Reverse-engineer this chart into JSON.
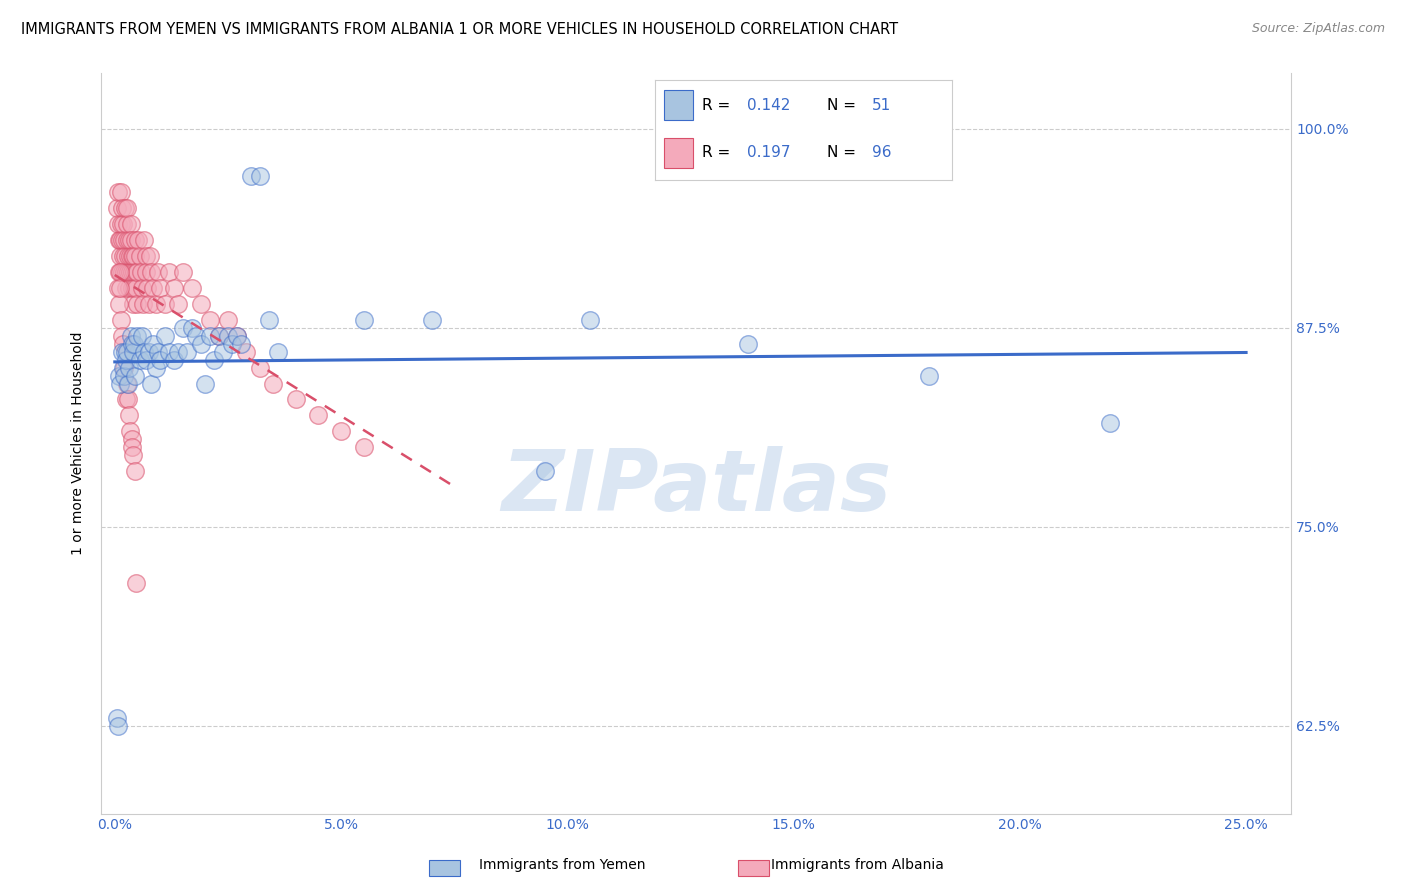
{
  "title": "IMMIGRANTS FROM YEMEN VS IMMIGRANTS FROM ALBANIA 1 OR MORE VEHICLES IN HOUSEHOLD CORRELATION CHART",
  "source": "Source: ZipAtlas.com",
  "xlabel_ticks": [
    "0.0%",
    "5.0%",
    "10.0%",
    "15.0%",
    "20.0%",
    "25.0%"
  ],
  "xlabel_vals": [
    0.0,
    5.0,
    10.0,
    15.0,
    20.0,
    25.0
  ],
  "ylabel_ticks": [
    "62.5%",
    "75.0%",
    "87.5%",
    "100.0%"
  ],
  "ylabel_vals": [
    62.5,
    75.0,
    87.5,
    100.0
  ],
  "ylabel_label": "1 or more Vehicles in Household",
  "xlim": [
    -0.3,
    26.0
  ],
  "ylim": [
    57.0,
    103.5
  ],
  "blue_color": "#A8C4E0",
  "pink_color": "#F4AABB",
  "blue_line_color": "#3B6BC9",
  "pink_line_color": "#D94F6A",
  "tick_color": "#3B6BC9",
  "watermark": "ZIPatlas",
  "yemen_x": [
    0.05,
    0.08,
    0.1,
    0.12,
    0.15,
    0.18,
    0.2,
    0.22,
    0.25,
    0.28,
    0.3,
    0.32,
    0.35,
    0.38,
    0.4,
    0.42,
    0.45,
    0.5,
    0.55,
    0.6,
    0.65,
    0.7,
    0.75,
    0.8,
    0.85,
    0.9,
    0.95,
    1.0,
    1.1,
    1.2,
    1.3,
    1.4,
    1.5,
    1.6,
    1.7,
    1.8,
    1.9,
    2.0,
    2.1,
    2.2,
    2.3,
    2.4,
    2.5,
    2.6,
    2.7,
    2.8,
    3.0,
    3.2,
    3.4,
    3.6,
    5.5,
    7.0,
    9.5,
    10.5,
    14.0,
    18.0,
    22.0
  ],
  "yemen_y": [
    63.0,
    62.5,
    84.5,
    84.0,
    86.0,
    85.0,
    84.5,
    86.0,
    85.5,
    86.0,
    84.0,
    85.0,
    87.0,
    86.5,
    86.0,
    86.5,
    84.5,
    87.0,
    85.5,
    87.0,
    86.0,
    85.5,
    86.0,
    84.0,
    86.5,
    85.0,
    86.0,
    85.5,
    87.0,
    86.0,
    85.5,
    86.0,
    87.5,
    86.0,
    87.5,
    87.0,
    86.5,
    84.0,
    87.0,
    85.5,
    87.0,
    86.0,
    87.0,
    86.5,
    87.0,
    86.5,
    97.0,
    97.0,
    88.0,
    86.0,
    88.0,
    88.0,
    78.5,
    88.0,
    86.5,
    84.5,
    81.5
  ],
  "albania_x": [
    0.05,
    0.07,
    0.08,
    0.09,
    0.1,
    0.11,
    0.12,
    0.13,
    0.14,
    0.15,
    0.16,
    0.17,
    0.18,
    0.19,
    0.2,
    0.21,
    0.22,
    0.23,
    0.24,
    0.25,
    0.26,
    0.27,
    0.28,
    0.29,
    0.3,
    0.31,
    0.32,
    0.33,
    0.34,
    0.35,
    0.36,
    0.37,
    0.38,
    0.39,
    0.4,
    0.41,
    0.42,
    0.43,
    0.44,
    0.45,
    0.46,
    0.47,
    0.48,
    0.5,
    0.52,
    0.55,
    0.58,
    0.6,
    0.62,
    0.65,
    0.68,
    0.7,
    0.72,
    0.75,
    0.78,
    0.8,
    0.85,
    0.9,
    0.95,
    1.0,
    1.1,
    1.2,
    1.3,
    1.4,
    1.5,
    1.7,
    1.9,
    2.1,
    2.3,
    2.5,
    2.7,
    2.9,
    3.2,
    3.5,
    4.0,
    4.5,
    5.0,
    5.5,
    0.08,
    0.09,
    0.11,
    0.12,
    0.14,
    0.16,
    0.19,
    0.21,
    0.24,
    0.27,
    0.29,
    0.31,
    0.34,
    0.37,
    0.39,
    0.41,
    0.44,
    0.47
  ],
  "albania_y": [
    95.0,
    94.0,
    96.0,
    93.0,
    91.0,
    92.0,
    93.0,
    96.0,
    94.0,
    95.0,
    93.0,
    91.0,
    92.0,
    94.0,
    93.0,
    91.0,
    95.0,
    92.0,
    90.0,
    91.0,
    93.0,
    94.0,
    95.0,
    92.0,
    91.0,
    90.0,
    93.0,
    92.0,
    91.0,
    94.0,
    93.0,
    92.0,
    91.0,
    90.0,
    89.0,
    92.0,
    91.0,
    90.0,
    93.0,
    92.0,
    91.0,
    90.0,
    89.0,
    91.0,
    93.0,
    92.0,
    91.0,
    90.0,
    89.0,
    93.0,
    92.0,
    91.0,
    90.0,
    89.0,
    92.0,
    91.0,
    90.0,
    89.0,
    91.0,
    90.0,
    89.0,
    91.0,
    90.0,
    89.0,
    91.0,
    90.0,
    89.0,
    88.0,
    87.0,
    88.0,
    87.0,
    86.0,
    85.0,
    84.0,
    83.0,
    82.0,
    81.0,
    80.0,
    90.0,
    89.0,
    91.0,
    90.0,
    88.0,
    87.0,
    86.5,
    85.0,
    83.0,
    84.0,
    83.0,
    82.0,
    81.0,
    80.5,
    80.0,
    79.5,
    78.5,
    71.5
  ]
}
